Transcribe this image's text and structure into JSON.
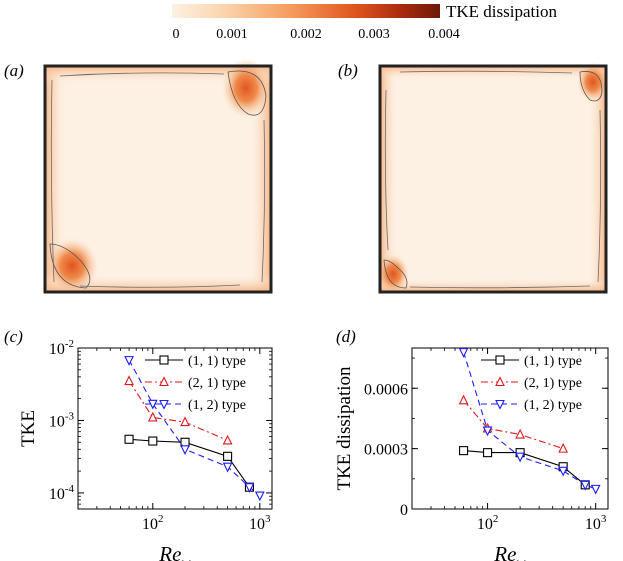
{
  "colorbar": {
    "label": "TKE dissipation",
    "min": 0,
    "max": 0.004,
    "ticks": [
      "0",
      "0.001",
      "0.002",
      "0.003",
      "0.004"
    ],
    "colors": [
      "#fdf1e4",
      "#fbd3aa",
      "#f59a5c",
      "#e0561f",
      "#a82a0c",
      "#6b1a0a"
    ]
  },
  "panels": {
    "a": {
      "label": "(a)"
    },
    "b": {
      "label": "(b)"
    },
    "c": {
      "label": "(c)"
    },
    "d": {
      "label": "(d)"
    }
  },
  "chart_data": [
    {
      "panel": "c",
      "type": "line",
      "title": "",
      "xlabel": "Re",
      "xlabel_sub": "w",
      "ylabel": "TKE",
      "xscale": "log",
      "yscale": "log",
      "xlim": [
        20,
        1300
      ],
      "ylim": [
        6e-05,
        0.01
      ],
      "xticks": [
        {
          "value": 100,
          "base": "10",
          "exp": "2"
        },
        {
          "value": 1000,
          "base": "10",
          "exp": "3"
        }
      ],
      "yticks": [
        {
          "value": 0.0001,
          "base": "10",
          "exp": "-4"
        },
        {
          "value": 0.001,
          "base": "10",
          "exp": "-3"
        },
        {
          "value": 0.01,
          "base": "10",
          "exp": "-2"
        }
      ],
      "legend_position": "top-right",
      "series": [
        {
          "name": "(1, 1) type",
          "color": "#000000",
          "marker": "square",
          "dash": "solid",
          "x": [
            60,
            100,
            200,
            500,
            800
          ],
          "y": [
            0.00055,
            0.00052,
            0.0005,
            0.00032,
            0.00012
          ]
        },
        {
          "name": "(2, 1) type",
          "color": "#e0191c",
          "marker": "triangle-up",
          "dash": "dashdot",
          "x": [
            60,
            100,
            200,
            500
          ],
          "y": [
            0.0035,
            0.0011,
            0.00095,
            0.00053
          ]
        },
        {
          "name": "(1, 2) type",
          "color": "#1b1bff",
          "marker": "triangle-down",
          "dash": "dashed",
          "x": [
            60,
            100,
            200,
            500,
            800,
            1000
          ],
          "y": [
            0.0068,
            0.0017,
            0.0004,
            0.00023,
            0.00012,
            9.2e-05
          ]
        }
      ]
    },
    {
      "panel": "d",
      "type": "line",
      "title": "",
      "xlabel": "Re",
      "xlabel_sub": "w",
      "ylabel": "TKE dissipation",
      "xscale": "log",
      "yscale": "linear",
      "xlim": [
        20,
        1300
      ],
      "ylim": [
        0,
        0.0008
      ],
      "xticks": [
        {
          "value": 100,
          "base": "10",
          "exp": "2"
        },
        {
          "value": 1000,
          "base": "10",
          "exp": "3"
        }
      ],
      "yticks": [
        {
          "value": 0,
          "label": "0"
        },
        {
          "value": 0.0003,
          "label": "0.0003"
        },
        {
          "value": 0.0006,
          "label": "0.0006"
        }
      ],
      "legend_position": "top-right",
      "series": [
        {
          "name": "(1, 1) type",
          "color": "#000000",
          "marker": "square",
          "dash": "solid",
          "x": [
            60,
            100,
            200,
            500,
            800
          ],
          "y": [
            0.00029,
            0.00028,
            0.00028,
            0.00021,
            0.00012
          ]
        },
        {
          "name": "(2, 1) type",
          "color": "#e0191c",
          "marker": "triangle-up",
          "dash": "dashdot",
          "x": [
            60,
            100,
            200,
            500
          ],
          "y": [
            0.00054,
            0.0004,
            0.00037,
            0.0003
          ]
        },
        {
          "name": "(1, 2) type",
          "color": "#1b1bff",
          "marker": "triangle-down",
          "dash": "dashed",
          "x": [
            60,
            100,
            200,
            500,
            800,
            1000
          ],
          "y": [
            0.00078,
            0.00039,
            0.00026,
            0.00019,
            0.00012,
            0.0001
          ]
        }
      ]
    }
  ]
}
